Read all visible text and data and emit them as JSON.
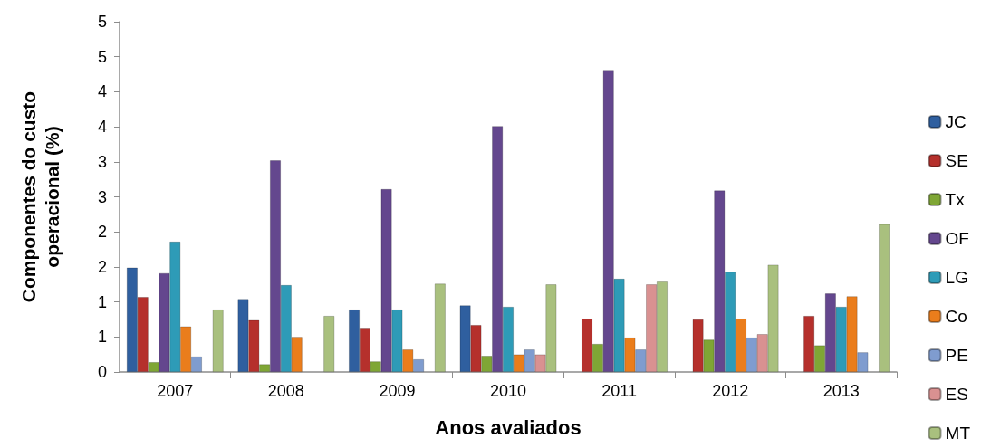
{
  "chart_data": {
    "type": "bar",
    "xlabel": "Anos avaliados",
    "ylabel": "Componentes do custo operacional (%)",
    "categories": [
      "2007",
      "2008",
      "2009",
      "2010",
      "2011",
      "2012",
      "2013"
    ],
    "series": [
      {
        "name": "JC",
        "color": "#2f5f9f",
        "values": [
          1.49,
          1.04,
          0.89,
          0.95,
          null,
          null,
          null
        ]
      },
      {
        "name": "SE",
        "color": "#b5302c",
        "values": [
          1.07,
          0.74,
          0.63,
          0.67,
          0.76,
          0.75,
          0.8
        ]
      },
      {
        "name": "Tx",
        "color": "#7fa635",
        "values": [
          0.14,
          0.11,
          0.15,
          0.23,
          0.4,
          0.46,
          0.38
        ]
      },
      {
        "name": "OF",
        "color": "#64478e",
        "values": [
          1.41,
          3.02,
          2.61,
          3.51,
          4.31,
          2.59,
          1.12
        ]
      },
      {
        "name": "LG",
        "color": "#2e9bb7",
        "values": [
          1.86,
          1.24,
          0.89,
          0.93,
          1.33,
          1.43,
          0.93
        ]
      },
      {
        "name": "Co",
        "color": "#ea7d1c",
        "values": [
          0.65,
          0.5,
          0.32,
          0.25,
          0.49,
          0.76,
          1.08
        ]
      },
      {
        "name": "PE",
        "color": "#7f9ccf",
        "values": [
          0.22,
          null,
          0.18,
          0.32,
          0.32,
          0.49,
          0.28
        ]
      },
      {
        "name": "ES",
        "color": "#d99191",
        "values": [
          null,
          null,
          null,
          0.25,
          1.25,
          0.54,
          null
        ]
      },
      {
        "name": "MT",
        "color": "#a9c07e",
        "values": [
          0.89,
          0.8,
          1.26,
          1.25,
          1.29,
          1.53,
          2.11
        ]
      }
    ],
    "ylim": [
      0,
      5
    ],
    "yticks": [
      0,
      {
        "value": 0.5,
        "label": "1"
      },
      1,
      {
        "value": 1.5,
        "label": "2"
      },
      2,
      {
        "value": 2.5,
        "label": "3"
      },
      3,
      {
        "value": 3.5,
        "label": "4"
      },
      4,
      {
        "value": 4.5,
        "label": "5"
      },
      5
    ],
    "legend": "right"
  }
}
